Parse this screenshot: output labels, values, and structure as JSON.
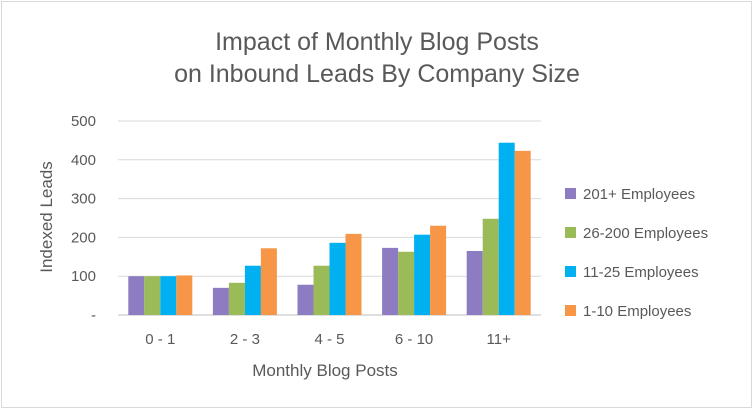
{
  "chart_data": {
    "type": "bar",
    "title_lines": [
      "Impact of Monthly Blog Posts",
      "on Inbound Leads By Company Size"
    ],
    "xlabel": "Monthly Blog Posts",
    "ylabel": "Indexed Leads",
    "categories": [
      "0 - 1",
      "2 - 3",
      "4 - 5",
      "6 - 10",
      "11+"
    ],
    "ylim": [
      0,
      500
    ],
    "y_ticks": [
      0,
      100,
      200,
      300,
      400,
      500
    ],
    "y_tick_labels": [
      "-",
      "100",
      "200",
      "300",
      "400",
      "500"
    ],
    "grid": true,
    "legend_position": "right",
    "series": [
      {
        "name": "201+ Employees",
        "color": "#8e7cc3",
        "values": [
          100,
          70,
          78,
          173,
          165
        ]
      },
      {
        "name": "26-200 Employees",
        "color": "#9bbb59",
        "values": [
          100,
          83,
          127,
          163,
          248
        ]
      },
      {
        "name": "11-25 Employees",
        "color": "#00b0f0",
        "values": [
          100,
          127,
          186,
          207,
          444
        ]
      },
      {
        "name": "1-10 Employees",
        "color": "#f79646",
        "values": [
          102,
          172,
          209,
          230,
          423
        ]
      }
    ]
  }
}
